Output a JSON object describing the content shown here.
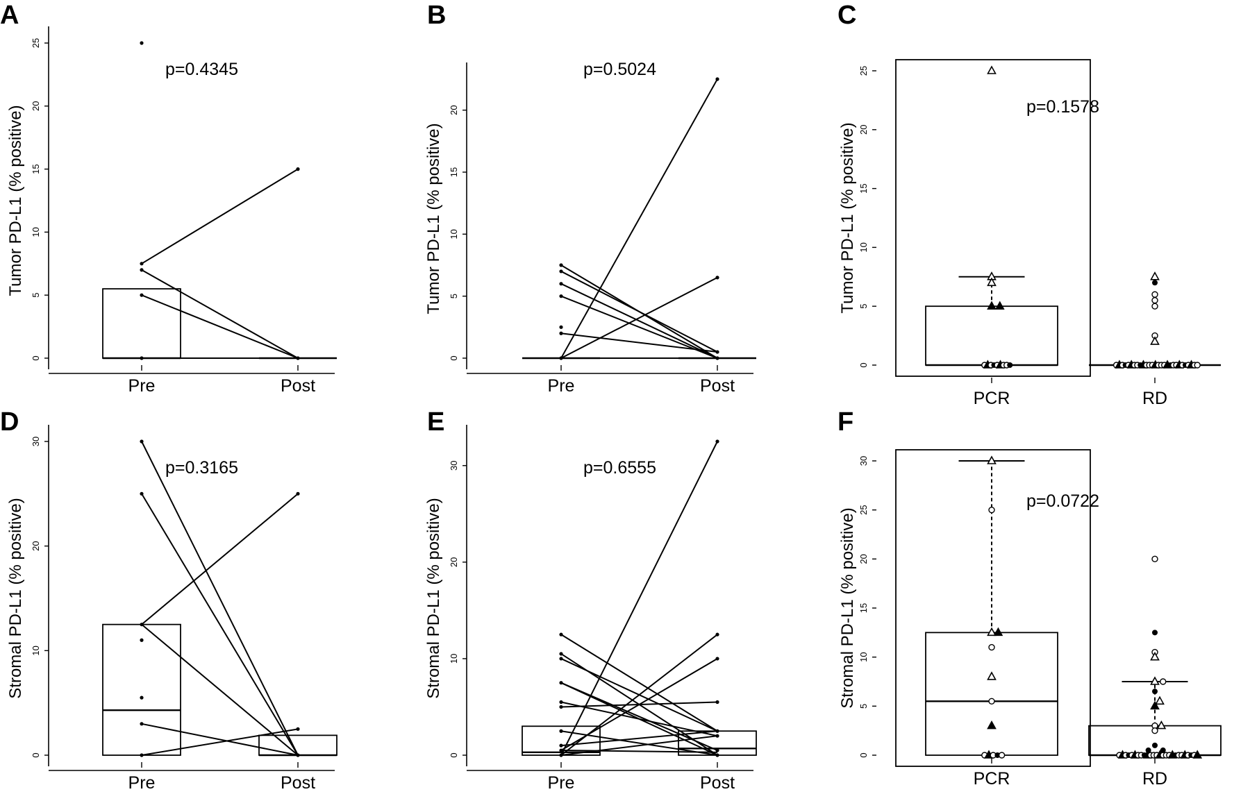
{
  "chart_data": [
    {
      "panel": "A",
      "type": "box-paired",
      "ylabel": "Tumor PD-L1 (% positive)",
      "categories": [
        "Pre",
        "Post"
      ],
      "pvalue": "p=0.4345",
      "yticks": [
        0,
        5,
        10,
        15,
        20,
        25
      ],
      "ylim": [
        0,
        25
      ],
      "boxes": [
        {
          "group": "Pre",
          "q1": 0,
          "median": 0,
          "q3": 5.5
        },
        {
          "group": "Post",
          "q1": 0,
          "median": 0,
          "q3": 0
        }
      ],
      "pairs": [
        [
          7.5,
          15
        ],
        [
          7,
          0
        ],
        [
          5,
          0
        ],
        [
          0,
          0
        ]
      ],
      "pre_points": [
        25,
        7.5,
        7,
        5,
        0
      ],
      "post_points": [
        15,
        0
      ]
    },
    {
      "panel": "B",
      "type": "box-paired",
      "ylabel": "Tumor PD-L1 (% positive)",
      "categories": [
        "Pre",
        "Post"
      ],
      "pvalue": "p=0.5024",
      "yticks": [
        0,
        5,
        10,
        15,
        20
      ],
      "ylim": [
        0,
        22.5
      ],
      "boxes": [
        {
          "group": "Pre",
          "q1": 0,
          "median": 0,
          "q3": 0
        },
        {
          "group": "Post",
          "q1": 0,
          "median": 0,
          "q3": 0
        }
      ],
      "pairs": [
        [
          0,
          22.5
        ],
        [
          0,
          6.5
        ],
        [
          7.5,
          0
        ],
        [
          7,
          0.5
        ],
        [
          6,
          0
        ],
        [
          5,
          0
        ],
        [
          2,
          0.5
        ],
        [
          0,
          0
        ]
      ],
      "pre_points": [
        7.5,
        7,
        6,
        5,
        2.5,
        2,
        0
      ],
      "post_points": [
        22.5,
        6.5,
        0.5,
        0
      ]
    },
    {
      "panel": "C",
      "type": "box-strip",
      "ylabel": "Tumor PD-L1 (% positive)",
      "categories": [
        "PCR",
        "RD"
      ],
      "pvalue": "p=0.1578",
      "yticks": [
        0,
        5,
        10,
        15,
        20,
        25
      ],
      "ylim": [
        0,
        25
      ],
      "boxes": [
        {
          "group": "PCR",
          "q1": 0,
          "median": 0,
          "q3": 5,
          "whisker_high": 7.5
        },
        {
          "group": "RD",
          "q1": 0,
          "median": 0,
          "q3": 0
        }
      ],
      "points": [
        {
          "g": 0,
          "y": 25,
          "s": "to"
        },
        {
          "g": 0,
          "y": 7.5,
          "s": "to"
        },
        {
          "g": 0,
          "y": 7,
          "s": "to"
        },
        {
          "g": 0,
          "y": 5,
          "s": "tf"
        },
        {
          "g": 0,
          "y": 5,
          "s": "tf",
          "dx": 0.05
        },
        {
          "g": 1,
          "y": 7.5,
          "s": "to"
        },
        {
          "g": 1,
          "y": 7,
          "s": "cf"
        },
        {
          "g": 1,
          "y": 6,
          "s": "co"
        },
        {
          "g": 1,
          "y": 5.5,
          "s": "co"
        },
        {
          "g": 1,
          "y": 5,
          "s": "co"
        },
        {
          "g": 1,
          "y": 2.5,
          "s": "co"
        },
        {
          "g": 1,
          "y": 2,
          "s": "to"
        }
      ],
      "zero_rows": [
        {
          "g": 0,
          "n": 9,
          "from": -0.07,
          "to": 0.18
        },
        {
          "g": 1,
          "n": 28,
          "from": -0.38,
          "to": 0.42
        }
      ]
    },
    {
      "panel": "D",
      "type": "box-paired",
      "ylabel": "Stromal PD-L1 (% positive)",
      "categories": [
        "Pre",
        "Post"
      ],
      "pvalue": "p=0.3165",
      "yticks": [
        0,
        10,
        20,
        30
      ],
      "ylim": [
        0,
        30
      ],
      "boxes": [
        {
          "group": "Pre",
          "q1": 0,
          "median": 4.3,
          "q3": 12.5
        },
        {
          "group": "Post",
          "q1": 0,
          "median": 0,
          "q3": 1.9
        }
      ],
      "pairs": [
        [
          30,
          0
        ],
        [
          25,
          0
        ],
        [
          12.5,
          25
        ],
        [
          12.5,
          0
        ],
        [
          3,
          0
        ],
        [
          0,
          2.5
        ]
      ],
      "pre_points": [
        30,
        25,
        12.5,
        11,
        5.5,
        3,
        0
      ],
      "post_points": [
        25,
        2.5,
        0
      ]
    },
    {
      "panel": "E",
      "type": "box-paired",
      "ylabel": "Stromal PD-L1 (% positive)",
      "categories": [
        "Pre",
        "Post"
      ],
      "pvalue": "p=0.6555",
      "yticks": [
        0,
        10,
        20,
        30
      ],
      "ylim": [
        0,
        32.5
      ],
      "boxes": [
        {
          "group": "Pre",
          "q1": 0,
          "median": 0.3,
          "q3": 3
        },
        {
          "group": "Post",
          "q1": 0,
          "median": 0.7,
          "q3": 2.5
        }
      ],
      "pairs": [
        [
          12.5,
          2.5
        ],
        [
          10.5,
          0
        ],
        [
          10,
          2.5
        ],
        [
          7.5,
          0.5
        ],
        [
          7.5,
          0
        ],
        [
          5.5,
          2
        ],
        [
          5,
          5.5
        ],
        [
          0,
          32.5
        ],
        [
          0,
          12.5
        ],
        [
          0.5,
          10
        ],
        [
          1,
          2.5
        ],
        [
          2.5,
          0
        ],
        [
          0,
          2
        ],
        [
          0.5,
          0.3
        ]
      ],
      "pre_points": [
        12.5,
        10.5,
        10,
        7.5,
        5.5,
        5,
        2.5,
        1,
        0.5,
        0
      ],
      "post_points": [
        32.5,
        12.5,
        10,
        5.5,
        2.5,
        2,
        0.5,
        0
      ]
    },
    {
      "panel": "F",
      "type": "box-strip",
      "ylabel": "Stromal PD-L1 (% positive)",
      "categories": [
        "PCR",
        "RD"
      ],
      "pvalue": "p=0.0722",
      "yticks": [
        0,
        5,
        10,
        15,
        20,
        25,
        30
      ],
      "ylim": [
        0,
        30
      ],
      "boxes": [
        {
          "group": "PCR",
          "q1": 0,
          "median": 5.5,
          "q3": 12.5,
          "whisker_high": 30
        },
        {
          "group": "RD",
          "q1": 0,
          "median": 0,
          "q3": 3,
          "whisker_high": 7.5
        }
      ],
      "points": [
        {
          "g": 0,
          "y": 30,
          "s": "to"
        },
        {
          "g": 0,
          "y": 25,
          "s": "co"
        },
        {
          "g": 0,
          "y": 12.5,
          "s": "to"
        },
        {
          "g": 0,
          "y": 12.5,
          "s": "tf",
          "dx": 0.04
        },
        {
          "g": 0,
          "y": 11,
          "s": "co"
        },
        {
          "g": 0,
          "y": 8,
          "s": "to"
        },
        {
          "g": 0,
          "y": 5.5,
          "s": "co"
        },
        {
          "g": 0,
          "y": 3,
          "s": "tf"
        },
        {
          "g": 1,
          "y": 20,
          "s": "co"
        },
        {
          "g": 1,
          "y": 12.5,
          "s": "cf"
        },
        {
          "g": 1,
          "y": 10.5,
          "s": "co"
        },
        {
          "g": 1,
          "y": 10,
          "s": "to"
        },
        {
          "g": 1,
          "y": 7.5,
          "s": "to"
        },
        {
          "g": 1,
          "y": 7.5,
          "s": "co",
          "dx": 0.05
        },
        {
          "g": 1,
          "y": 6.5,
          "s": "cf"
        },
        {
          "g": 1,
          "y": 5,
          "s": "tf"
        },
        {
          "g": 1,
          "y": 5.5,
          "s": "to",
          "dx": 0.03
        },
        {
          "g": 1,
          "y": 3,
          "s": "co"
        },
        {
          "g": 1,
          "y": 3,
          "s": "to",
          "dx": 0.04
        },
        {
          "g": 1,
          "y": 2.5,
          "s": "co"
        },
        {
          "g": 1,
          "y": 1,
          "s": "cf"
        },
        {
          "g": 1,
          "y": 0.5,
          "s": "cf",
          "dx": -0.04
        },
        {
          "g": 1,
          "y": 0.5,
          "s": "cf",
          "dx": 0.05
        }
      ],
      "zero_rows": [
        {
          "g": 0,
          "n": 5,
          "from": -0.07,
          "to": 0.1
        },
        {
          "g": 1,
          "n": 26,
          "from": -0.35,
          "to": 0.42
        }
      ]
    }
  ]
}
